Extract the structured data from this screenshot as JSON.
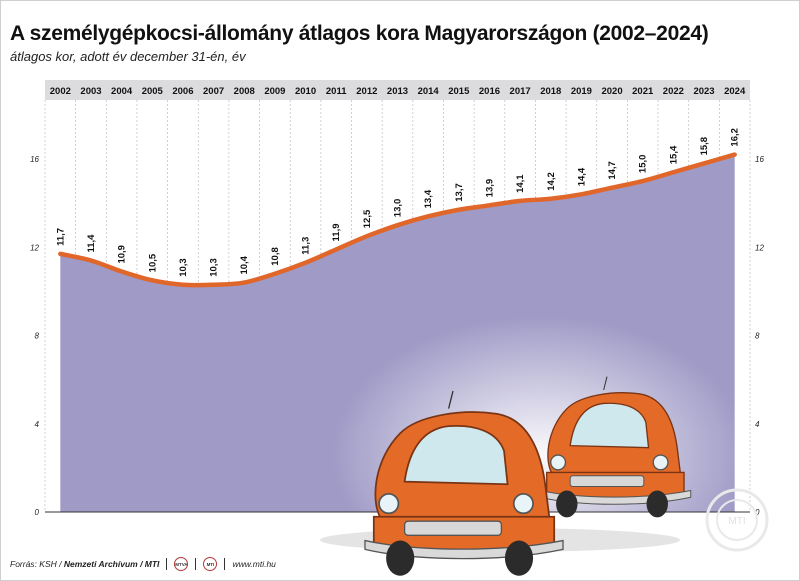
{
  "title": "A személygépkocsi-állomány átlagos kora Magyarországon (2002–2024)",
  "subtitle": "átlagos kor, adott év december 31-én, év",
  "footer": {
    "source_prefix": "Forrás: KSH /",
    "source_bold": "Nemzeti Archívum / MTI",
    "url": "www.mti.hu",
    "watermark": "MTI"
  },
  "colors": {
    "area_fill": "#9f9ac6",
    "line": "#e0662a",
    "header_band": "#dcdcde",
    "car_body": "#e46a28"
  },
  "chart_data": {
    "type": "area",
    "title": "A személygépkocsi-állomány átlagos kora Magyarországon (2002–2024)",
    "subtitle": "átlagos kor, adott év december 31-én, év",
    "categories": [
      "2002",
      "2003",
      "2004",
      "2005",
      "2006",
      "2007",
      "2008",
      "2009",
      "2010",
      "2011",
      "2012",
      "2013",
      "2014",
      "2015",
      "2016",
      "2017",
      "2018",
      "2019",
      "2020",
      "2021",
      "2022",
      "2023",
      "2024"
    ],
    "series": [
      {
        "values": [
          11.7,
          11.4,
          10.9,
          10.5,
          10.3,
          10.3,
          10.4,
          10.8,
          11.3,
          11.9,
          12.5,
          13.0,
          13.4,
          13.7,
          13.9,
          14.1,
          14.2,
          14.4,
          14.7,
          15.0,
          15.4,
          15.8,
          16.2
        ]
      }
    ],
    "data_labels": [
      "11,7",
      "11,4",
      "10,9",
      "10,5",
      "10,3",
      "10,3",
      "10,4",
      "10,8",
      "11,3",
      "11,9",
      "12,5",
      "13,0",
      "13,4",
      "13,7",
      "13,9",
      "14,1",
      "14,2",
      "14,4",
      "14,7",
      "15,0",
      "15,4",
      "15,8",
      "16,2"
    ],
    "yticks": [
      0,
      4,
      8,
      12,
      16
    ],
    "ylim": [
      0,
      18
    ],
    "xlabel": "",
    "ylabel": "",
    "grid": "vertical dashed",
    "axis_labels_on_both_sides": true
  }
}
